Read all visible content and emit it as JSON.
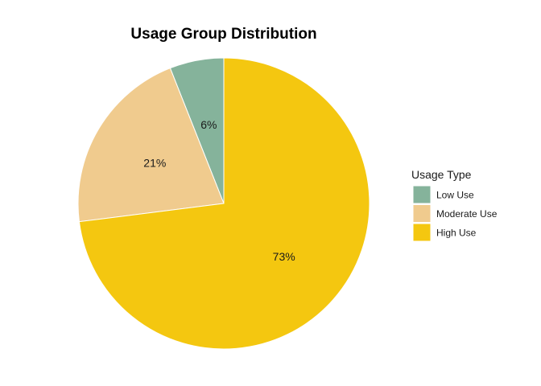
{
  "chart_data": {
    "type": "pie",
    "title": "Usage Group Distribution",
    "legend": {
      "title": "Usage Type",
      "placement": "right"
    },
    "slices": [
      {
        "name": "Low Use",
        "value": 6,
        "label": "6%",
        "color": "#85B39B"
      },
      {
        "name": "Moderate Use",
        "value": 21,
        "label": "21%",
        "color": "#F0CB8E"
      },
      {
        "name": "High Use",
        "value": 73,
        "label": "73%",
        "color": "#F4C710"
      }
    ]
  }
}
